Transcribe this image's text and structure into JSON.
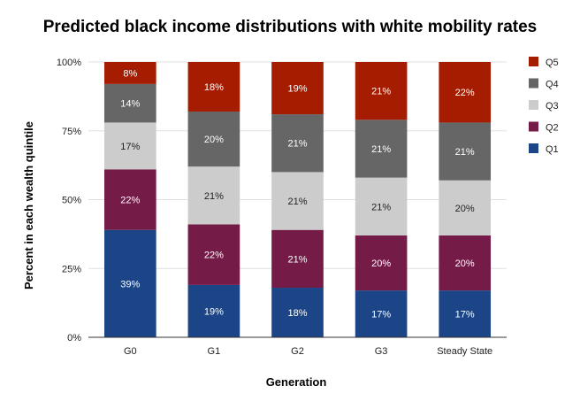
{
  "chart_data": {
    "type": "bar",
    "stacked": true,
    "title": "Predicted black income distributions with white mobility rates",
    "xlabel": "Generation",
    "ylabel": "Percent in each wealth quintile",
    "ylim": [
      0,
      100
    ],
    "yticks": [
      "0%",
      "25%",
      "50%",
      "75%",
      "100%"
    ],
    "ytick_values": [
      0,
      25,
      50,
      75,
      100
    ],
    "grid": true,
    "legend_position": "right",
    "categories": [
      "G0",
      "G1",
      "G2",
      "G3",
      "Steady State"
    ],
    "series": [
      {
        "name": "Q1",
        "color": "#1c4587",
        "label_color": "#ffffff",
        "values": [
          39,
          19,
          18,
          17,
          17
        ],
        "labels": [
          "39%",
          "19%",
          "18%",
          "17%",
          "17%"
        ]
      },
      {
        "name": "Q2",
        "color": "#741b47",
        "label_color": "#ffffff",
        "values": [
          22,
          22,
          21,
          20,
          20
        ],
        "labels": [
          "22%",
          "22%",
          "21%",
          "20%",
          "20%"
        ]
      },
      {
        "name": "Q3",
        "color": "#cccccc",
        "label_color": "#222222",
        "values": [
          17,
          21,
          21,
          21,
          20
        ],
        "labels": [
          "17%",
          "21%",
          "21%",
          "21%",
          "20%"
        ]
      },
      {
        "name": "Q4",
        "color": "#666666",
        "label_color": "#ffffff",
        "values": [
          14,
          20,
          21,
          21,
          21
        ],
        "labels": [
          "14%",
          "20%",
          "21%",
          "21%",
          "21%"
        ]
      },
      {
        "name": "Q5",
        "color": "#a61c00",
        "label_color": "#ffffff",
        "values": [
          8,
          18,
          19,
          21,
          22
        ],
        "labels": [
          "8%",
          "18%",
          "19%",
          "21%",
          "22%"
        ]
      }
    ]
  }
}
